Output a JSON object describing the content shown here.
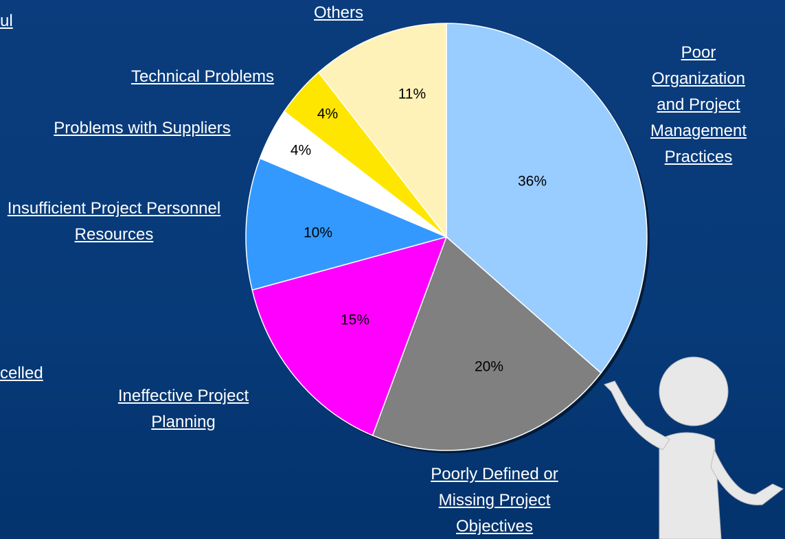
{
  "chart_data": {
    "type": "pie",
    "categories": [
      "Poor Organization and Project Management Practices",
      "Poorly Defined or Missing Project Objectives",
      "Ineffective Project Planning",
      "Insufficient Project Personnel Resources",
      "Problems with Suppliers",
      "Technical Problems",
      "Others"
    ],
    "values": [
      36,
      20,
      15,
      10,
      4,
      4,
      11
    ],
    "value_labels": [
      "36%",
      "20%",
      "15%",
      "10%",
      "4%",
      "4%",
      "11%"
    ],
    "colors": [
      "#99ccff",
      "#808080",
      "#ff00ff",
      "#3399ff",
      "#ffffff",
      "#ffe600",
      "#fff2b8"
    ]
  },
  "fragments": [
    "ul",
    "celled"
  ]
}
